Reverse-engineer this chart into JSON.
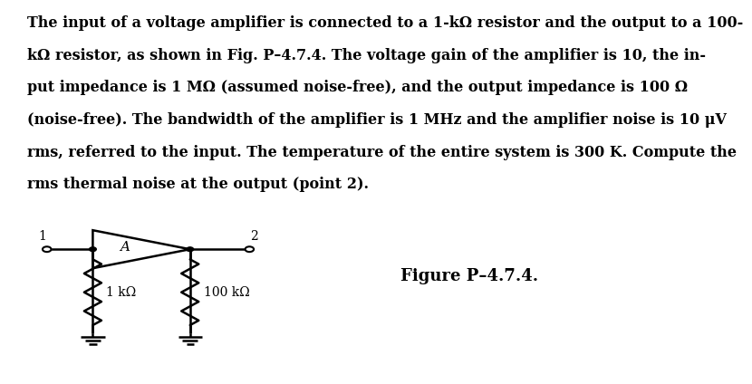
{
  "text_lines": [
    "The input of a voltage amplifier is connected to a 1-kΩ resistor and the output to a 100-",
    "kΩ resistor, as shown in Fig. P–4.7.4. The voltage gain of the amplifier is 10, the in-",
    "put impedance is 1 MΩ (assumed noise-free), and the output impedance is 100 Ω",
    "(noise-free). The bandwidth of the amplifier is 1 MHz and the amplifier noise is 10 μV",
    "rms, referred to the input. The temperature of the entire system is 300 K. Compute the",
    "rms thermal noise at the output (point 2)."
  ],
  "figure_label": "Figure P–4.7.4.",
  "node1_label": "1",
  "node2_label": "2",
  "amp_label": "A",
  "r1_label": "1 kΩ",
  "r2_label": "100 kΩ",
  "bg_color": "#ffffff",
  "line_color": "#000000",
  "fontsize_text": 11.5,
  "fontsize_labels": 10,
  "fontsize_figure": 13
}
